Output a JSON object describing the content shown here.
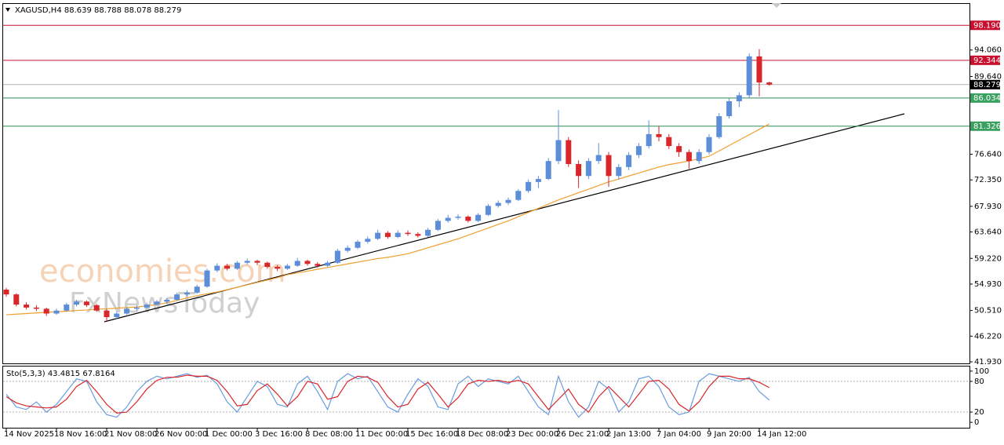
{
  "header": "XAGUSD,H4  88.639 88.788 88.078 88.279",
  "watermark": [
    "economies.com",
    "FxNewsToday"
  ],
  "chart_data": [
    {
      "type": "candlestick",
      "categories": [
        "14 Nov 2025",
        null,
        null,
        null,
        null,
        "18 Nov 16:00",
        null,
        null,
        null,
        null,
        "21 Nov 08:00",
        null,
        null,
        null,
        null,
        "26 Nov 00:00",
        null,
        null,
        null,
        null,
        "1 Dec 00:00",
        null,
        null,
        null,
        null,
        "3 Dec 16:00",
        null,
        null,
        null,
        null,
        "8 Dec 08:00",
        null,
        null,
        null,
        null,
        "11 Dec 00:00",
        null,
        null,
        null,
        null,
        "15 Dec 16:00",
        null,
        null,
        null,
        null,
        "18 Dec 08:00",
        null,
        null,
        null,
        null,
        "23 Dec 00:00",
        null,
        null,
        null,
        null,
        "26 Dec 21:00",
        null,
        null,
        null,
        null,
        "2 Jan 13:00",
        null,
        null,
        null,
        null,
        "7 Jan 04:00",
        null,
        null,
        null,
        null,
        "9 Jan 20:00",
        null,
        null,
        null,
        null,
        "14 Jan 12:00",
        null
      ],
      "ohlc": [
        [
          54.0,
          54.3,
          52.8,
          53.2
        ],
        [
          53.2,
          53.4,
          51.2,
          51.5
        ],
        [
          51.5,
          51.9,
          50.7,
          51.0
        ],
        [
          51.0,
          51.4,
          50.4,
          50.8
        ],
        [
          50.8,
          51.0,
          49.6,
          50.0
        ],
        [
          50.0,
          50.8,
          49.8,
          50.5
        ],
        [
          50.5,
          51.8,
          50.3,
          51.5
        ],
        [
          51.5,
          52.3,
          51.2,
          52.0
        ],
        [
          52.0,
          52.2,
          51.1,
          51.4
        ],
        [
          51.4,
          51.6,
          50.3,
          50.5
        ],
        [
          50.5,
          50.7,
          48.7,
          49.4
        ],
        [
          49.4,
          50.3,
          49.1,
          50.0
        ],
        [
          50.0,
          51.0,
          49.8,
          50.8
        ],
        [
          50.8,
          51.4,
          50.5,
          51.0
        ],
        [
          51.0,
          51.8,
          50.8,
          51.5
        ],
        [
          51.5,
          52.3,
          51.2,
          52.0
        ],
        [
          52.0,
          52.6,
          51.7,
          52.3
        ],
        [
          52.3,
          53.5,
          52.1,
          53.2
        ],
        [
          53.2,
          53.9,
          52.9,
          53.5
        ],
        [
          53.5,
          54.8,
          53.3,
          54.5
        ],
        [
          54.5,
          57.5,
          54.3,
          57.2
        ],
        [
          57.2,
          58.4,
          56.9,
          58.0
        ],
        [
          58.0,
          58.3,
          57.2,
          57.5
        ],
        [
          57.5,
          58.8,
          57.3,
          58.5
        ],
        [
          58.5,
          59.2,
          58.2,
          58.8
        ],
        [
          58.8,
          59.0,
          58.1,
          58.5
        ],
        [
          58.5,
          58.7,
          57.5,
          57.8
        ],
        [
          57.8,
          58.1,
          57.1,
          57.5
        ],
        [
          57.5,
          58.3,
          57.3,
          58.0
        ],
        [
          58.0,
          59.3,
          57.8,
          58.8
        ],
        [
          58.8,
          59.0,
          58.0,
          58.3
        ],
        [
          58.3,
          58.6,
          57.7,
          58.0
        ],
        [
          58.0,
          58.8,
          57.8,
          58.5
        ],
        [
          58.5,
          60.8,
          58.3,
          60.5
        ],
        [
          60.5,
          61.4,
          60.2,
          61.0
        ],
        [
          61.0,
          62.3,
          60.8,
          62.0
        ],
        [
          62.0,
          62.9,
          61.7,
          62.5
        ],
        [
          62.5,
          64.0,
          62.3,
          63.5
        ],
        [
          63.5,
          63.8,
          62.5,
          62.8
        ],
        [
          62.8,
          63.9,
          62.6,
          63.5
        ],
        [
          63.5,
          63.9,
          63.0,
          63.3
        ],
        [
          63.3,
          63.6,
          62.7,
          63.0
        ],
        [
          63.0,
          64.3,
          62.8,
          64.0
        ],
        [
          64.0,
          65.8,
          63.8,
          65.5
        ],
        [
          65.5,
          66.5,
          65.2,
          66.0
        ],
        [
          66.0,
          66.6,
          65.7,
          66.2
        ],
        [
          66.2,
          66.4,
          65.2,
          65.5
        ],
        [
          65.5,
          66.8,
          65.3,
          66.5
        ],
        [
          66.5,
          68.3,
          66.3,
          68.0
        ],
        [
          68.0,
          68.9,
          67.7,
          68.5
        ],
        [
          68.5,
          69.4,
          68.2,
          69.0
        ],
        [
          69.0,
          70.8,
          68.8,
          70.5
        ],
        [
          70.5,
          72.4,
          70.2,
          72.0
        ],
        [
          72.0,
          73.0,
          71.0,
          72.5
        ],
        [
          72.5,
          76.0,
          72.3,
          75.5
        ],
        [
          75.5,
          84.0,
          75.0,
          79.0
        ],
        [
          79.0,
          79.5,
          74.5,
          75.0
        ],
        [
          75.0,
          75.6,
          71.0,
          73.0
        ],
        [
          73.0,
          76.0,
          72.5,
          75.5
        ],
        [
          75.5,
          78.5,
          75.0,
          76.5
        ],
        [
          76.5,
          77.0,
          71.2,
          73.0
        ],
        [
          73.0,
          75.0,
          72.4,
          74.5
        ],
        [
          74.5,
          77.0,
          74.0,
          76.5
        ],
        [
          76.5,
          78.5,
          76.0,
          78.0
        ],
        [
          78.0,
          82.3,
          77.6,
          80.0
        ],
        [
          80.0,
          81.3,
          78.8,
          79.5
        ],
        [
          79.5,
          80.0,
          77.5,
          78.0
        ],
        [
          78.0,
          78.5,
          76.2,
          77.0
        ],
        [
          77.0,
          77.4,
          74.2,
          75.5
        ],
        [
          75.5,
          77.5,
          75.0,
          77.0
        ],
        [
          77.0,
          80.0,
          76.6,
          79.5
        ],
        [
          79.5,
          83.5,
          79.2,
          83.0
        ],
        [
          83.0,
          86.0,
          82.6,
          85.5
        ],
        [
          85.5,
          87.0,
          84.5,
          86.5
        ],
        [
          86.5,
          93.5,
          86.0,
          93.0
        ],
        [
          93.0,
          94.2,
          86.3,
          88.639
        ],
        [
          88.639,
          88.788,
          88.078,
          88.279
        ]
      ],
      "up_color": "#5b8dd9",
      "down_color": "#d9262a",
      "ma": {
        "color": "#f0a030",
        "values": [
          49.8,
          49.9,
          50.0,
          50.1,
          50.2,
          50.3,
          50.4,
          50.5,
          50.6,
          50.7,
          50.8,
          50.9,
          51.0,
          51.1,
          51.3,
          51.5,
          51.8,
          52.2,
          52.6,
          53.0,
          53.3,
          53.6,
          54.0,
          54.4,
          54.8,
          55.2,
          55.6,
          56.0,
          56.5,
          56.8,
          57.1,
          57.4,
          57.7,
          58.0,
          58.3,
          58.6,
          58.9,
          59.2,
          59.4,
          59.7,
          60.0,
          60.5,
          61.0,
          61.5,
          62.0,
          62.5,
          63.1,
          63.7,
          64.3,
          64.9,
          65.5,
          66.2,
          66.9,
          67.6,
          68.3,
          69.0,
          69.6,
          70.2,
          70.8,
          71.4,
          72.0,
          72.5,
          73.0,
          73.5,
          74.0,
          74.5,
          74.9,
          75.2,
          75.5,
          75.9,
          76.3,
          77.2,
          78.1,
          79.0,
          79.9,
          80.8,
          81.7
        ]
      },
      "ylim": [
        41.67,
        101.9
      ],
      "yticks": [
        {
          "value": 94.06,
          "label": "94.060"
        },
        {
          "value": 89.64,
          "label": "89.640"
        },
        {
          "value": 76.64,
          "label": "76.640"
        },
        {
          "value": 72.35,
          "label": "72.350"
        },
        {
          "value": 67.93,
          "label": "67.930"
        },
        {
          "value": 63.64,
          "label": "63.640"
        },
        {
          "value": 59.22,
          "label": "59.220"
        },
        {
          "value": 54.93,
          "label": "54.930"
        },
        {
          "value": 50.51,
          "label": "50.510"
        },
        {
          "value": 46.22,
          "label": "46.220"
        },
        {
          "value": 41.93,
          "label": "41.930"
        }
      ],
      "levels": [
        {
          "value": 98.19,
          "label": "98.190",
          "color": "#c8102e",
          "line_color": "#c8102e"
        },
        {
          "value": 92.344,
          "label": "92.344",
          "color": "#c8102e",
          "line_color": "#c8102e"
        },
        {
          "value": 88.279,
          "label": "88.279",
          "color": "#000000",
          "line_color": "#b0b0b0"
        },
        {
          "value": 86.034,
          "label": "86.034",
          "color": "#3aa060",
          "line_color": "#2e8b57"
        },
        {
          "value": 81.326,
          "label": "81.326",
          "color": "#3aa060",
          "line_color": "#2e8b57"
        }
      ]
    },
    {
      "type": "line",
      "title": "Sto(5,3,3) 43.4815 67.8164",
      "series": [
        {
          "color": "#6a9be0",
          "values": [
            55,
            30,
            25,
            40,
            20,
            35,
            60,
            85,
            80,
            40,
            15,
            10,
            30,
            60,
            80,
            90,
            85,
            90,
            95,
            88,
            92,
            75,
            40,
            20,
            50,
            80,
            70,
            35,
            30,
            75,
            90,
            60,
            25,
            80,
            95,
            85,
            90,
            60,
            30,
            20,
            55,
            85,
            70,
            30,
            25,
            75,
            90,
            70,
            85,
            80,
            75,
            90,
            60,
            30,
            15,
            90,
            40,
            10,
            30,
            80,
            65,
            20,
            40,
            85,
            90,
            70,
            30,
            15,
            20,
            80,
            95,
            90,
            85,
            80,
            88,
            60,
            43.4815
          ]
        },
        {
          "color": "#d9262a",
          "values": [
            50,
            38,
            32,
            30,
            28,
            30,
            45,
            70,
            82,
            60,
            35,
            18,
            20,
            40,
            65,
            82,
            88,
            88,
            92,
            90,
            90,
            82,
            60,
            32,
            35,
            62,
            75,
            55,
            32,
            50,
            80,
            75,
            45,
            50,
            80,
            90,
            88,
            78,
            50,
            30,
            35,
            65,
            78,
            55,
            30,
            48,
            75,
            82,
            80,
            82,
            78,
            82,
            75,
            50,
            25,
            45,
            65,
            35,
            20,
            50,
            70,
            50,
            30,
            55,
            80,
            82,
            65,
            35,
            22,
            40,
            70,
            90,
            90,
            85,
            85,
            78,
            67.8164
          ]
        }
      ],
      "ylim": [
        -10.6,
        109
      ],
      "yticks": [
        100,
        80,
        20,
        0
      ],
      "dashed_levels": [
        80,
        20
      ]
    }
  ]
}
